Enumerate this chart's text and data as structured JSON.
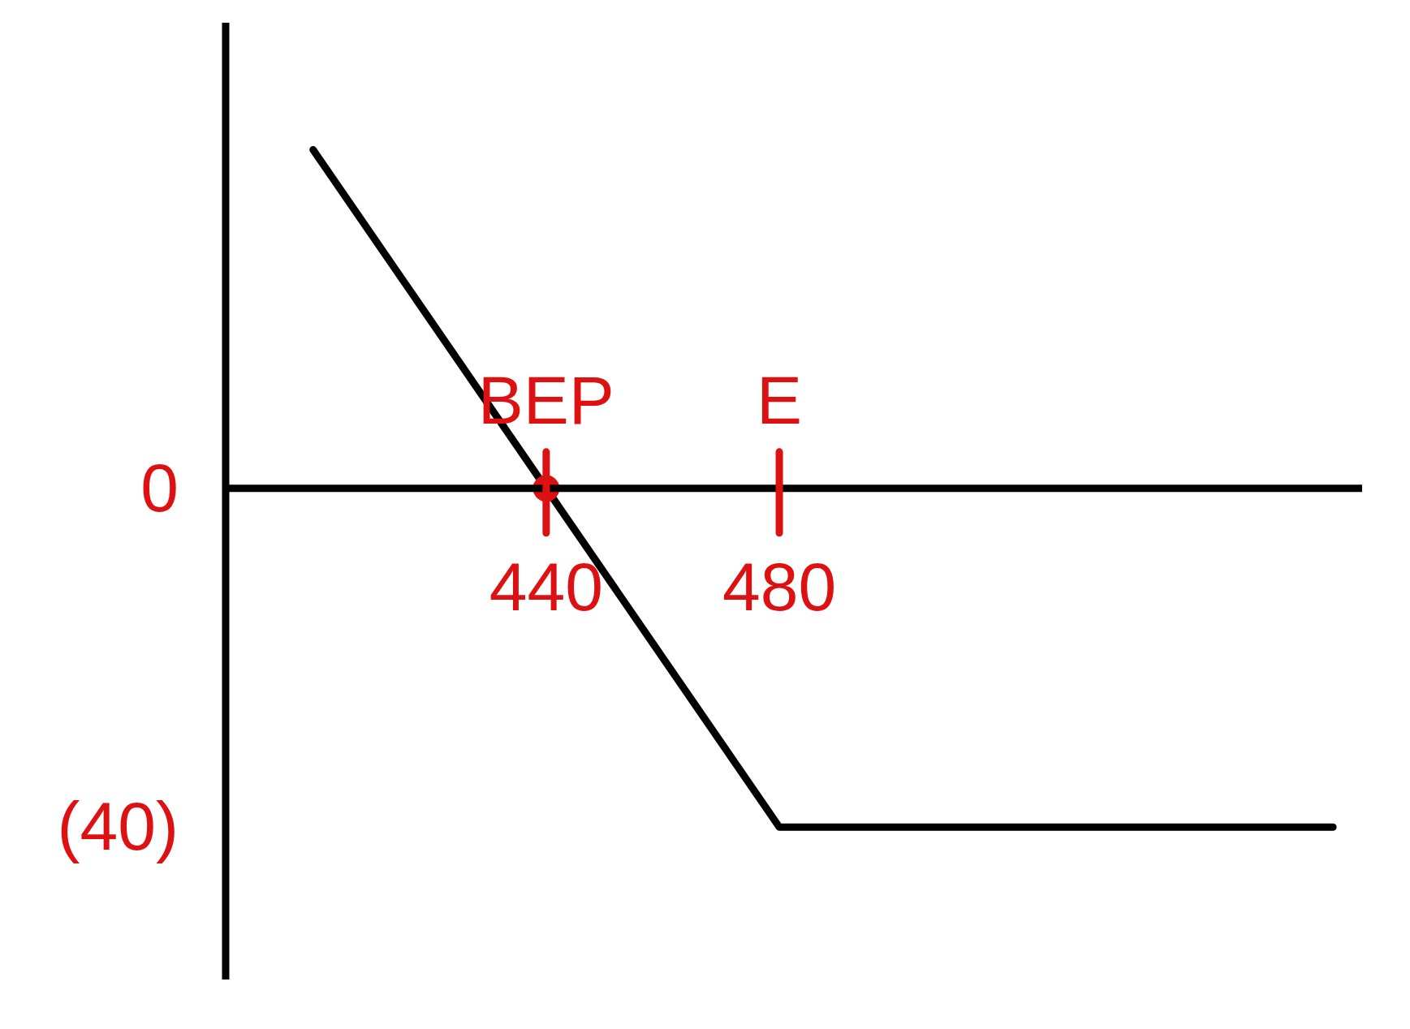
{
  "chart_data": {
    "type": "line",
    "x": [
      400,
      440,
      480,
      575
    ],
    "values": [
      40,
      0,
      -40,
      -40
    ],
    "color": "#000000",
    "xlim": [
      385,
      580
    ],
    "ylim": [
      -58,
      55
    ],
    "xticks": [
      440,
      480
    ],
    "yticks": [
      0,
      {
        "value": -40,
        "label": "(40)"
      }
    ],
    "annotations": [
      {
        "text": "BEP",
        "x": 440,
        "y": 0
      },
      {
        "text": "E",
        "x": 480
      }
    ],
    "marker": "none",
    "line_style": "solid",
    "grid": false,
    "legend": false
  }
}
